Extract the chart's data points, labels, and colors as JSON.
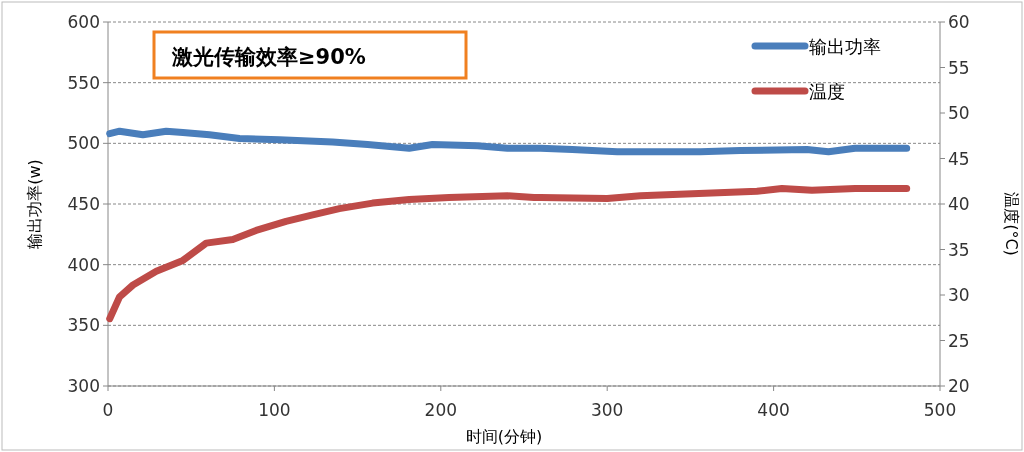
{
  "chart_data": {
    "type": "line",
    "xlabel": "时间(分钟)",
    "ylabel": "输出功率(w)",
    "y2label": "温度(°C)",
    "annotations": [
      "激光传输效率≥90%"
    ],
    "xlim": [
      0,
      500
    ],
    "xticks": [
      0,
      100,
      200,
      300,
      400,
      500
    ],
    "ylim": [
      300,
      600
    ],
    "yticks": [
      300,
      350,
      400,
      450,
      500,
      550,
      600
    ],
    "y2lim": [
      20,
      60
    ],
    "y2ticks": [
      20,
      25,
      30,
      35,
      40,
      45,
      50,
      55,
      60
    ],
    "grid": "y",
    "legend": "top right",
    "line_style": "solid",
    "marker": "none",
    "series": [
      {
        "name": "输出功率",
        "color": "#4a7ebb",
        "x": [
          1,
          7,
          21,
          35,
          45,
          61,
          79,
          103,
          135,
          156,
          181,
          195,
          222,
          240,
          260,
          279,
          306,
          326,
          356,
          380,
          420,
          433,
          449,
          480
        ],
        "values": [
          508,
          510,
          507,
          510,
          509,
          507,
          504,
          503,
          501,
          499,
          496,
          499,
          498,
          496,
          496,
          495,
          493,
          493,
          493,
          494,
          495,
          493,
          496,
          496
        ]
      },
      {
        "name": "温度",
        "color": "#be4b48",
        "axis": "y2",
        "x": [
          1,
          7,
          15,
          29,
          45,
          59,
          75,
          89,
          107,
          123,
          139,
          159,
          181,
          205,
          240,
          256,
          260,
          300,
          320,
          390,
          405,
          423,
          449,
          480
        ],
        "values": [
          27.4,
          29.8,
          31.1,
          32.6,
          33.8,
          35.7,
          36.1,
          37.1,
          38.1,
          38.8,
          39.5,
          40.1,
          40.5,
          40.7,
          40.9,
          40.7,
          40.7,
          40.6,
          40.9,
          41.4,
          41.7,
          41.5,
          41.7,
          41.7
        ]
      }
    ]
  }
}
